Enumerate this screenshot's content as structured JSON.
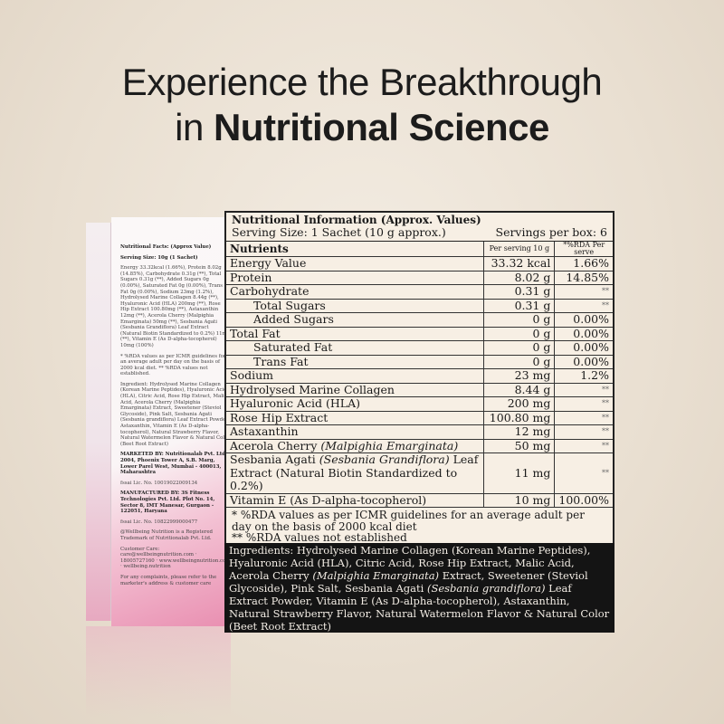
{
  "headline": {
    "line1": "Experience the Breakthrough",
    "line2_prefix": "in ",
    "line2_bold": "Nutritional Science"
  },
  "box": {
    "lines": [
      "Nutritional Facts: (Approx Value)",
      "Serving Size: 10g (1 Sachet)",
      "Energy 33.32kcal (1.66%), Protein 8.02g (14.85%), Carbohydrate 0.31g (**), Total Sugars 0.31g (**), Added Sugars 0g (0.00%), Saturated Fat 0g (0.00%), Trans Fat 0g (0.00%), Sodium 23mg (1.2%), Hydrolysed Marine Collagen 8.44g (**), Hyaluronic Acid (HLA) 200mg (**), Rose Hip Extract 100.80mg (**), Astaxanthin 12mg (**), Acerola Cherry (Malpighia Emarginata) 50mg (**), Sesbania Agati (Sesbania Grandiflora) Leaf Extract (Natural Biotin Standardized to 0.2%) 11mg (**), Vitamin E (As D-alpha-tocopherol) 10mg (100%)",
      "* %RDA values as per ICMR guidelines for an average adult per day on the basis of 2000 kcal diet. ** %RDA values not established.",
      "Ingredient: Hydrolysed Marine Collagen (Korean Marine Peptides), Hyaluronic Acid (HLA), Citric Acid, Rose Hip Extract, Malic Acid, Acerola Cherry (Malpighia Emarginata) Extract, Sweetener (Steviol Glycoside), Pink Salt, Sesbania Agati (Sesbania grandiflora) Leaf Extract Powder, Astaxanthin, Vitamin E (As D-alpha-tocopherol), Natural Strawberry Flavor, Natural Watermelon Flavor & Natural Color (Beet Root Extract)",
      "MARKETED BY: Nutritionalab Pvt. Ltd., 2004, Phoenix Tower A, S.B. Marg, Lower Parel West, Mumbai - 400013, Maharashtra",
      "fssai Lic. No. 10019022009134",
      "MANUFACTURED BY: 3S Fitness Technologies Pvt. Ltd. Plot No. 14, Sector 8, IMT Manesar, Gurgaon - 122051, Haryana",
      "fssai Lic. No. 10822999000477",
      "@Wellbeing Nutrition is a Registered Trademark of Nutritionalab Pvt. Ltd.",
      "Customer Care: care@wellbeingnutrition.com · 18005727160 · www.wellbeingnutrition.com · wellbeing.nutrition",
      "For any complaints, please refer to the marketer's address & customer care"
    ]
  },
  "panel": {
    "title": "Nutritional Information (Approx. Values)",
    "serving_size": "Serving Size: 1 Sachet (10 g approx.)",
    "servings_per_box": "Servings per box: 6",
    "headers": {
      "nutrients": "Nutrients",
      "per_serving": "Per serving 10 g",
      "rda": "*%RDA Per serve"
    },
    "rows": [
      {
        "name": "Energy Value",
        "value": "33.32 kcal",
        "rda": "1.66%"
      },
      {
        "name": "Protein",
        "value": "8.02 g",
        "rda": "14.85%"
      },
      {
        "name": "Carbohydrate",
        "value": "0.31 g",
        "rda": "**"
      },
      {
        "name": "Total Sugars",
        "value": "0.31 g",
        "rda": "**",
        "indent": true
      },
      {
        "name": "Added Sugars",
        "value": "0 g",
        "rda": "0.00%",
        "indent": true
      },
      {
        "name": "Total Fat",
        "value": "0 g",
        "rda": "0.00%"
      },
      {
        "name": "Saturated Fat",
        "value": "0 g",
        "rda": "0.00%",
        "indent": true
      },
      {
        "name": "Trans Fat",
        "value": "0 g",
        "rda": "0.00%",
        "indent": true
      },
      {
        "name": "Sodium",
        "value": "23 mg",
        "rda": "1.2%"
      },
      {
        "name": "Hydrolysed Marine Collagen",
        "value": "8.44 g",
        "rda": "**"
      },
      {
        "name": "Hyaluronic Acid (HLA)",
        "value": "200 mg",
        "rda": "**"
      },
      {
        "name": "Rose Hip Extract",
        "value": "100.80 mg",
        "rda": "**"
      },
      {
        "name": "Astaxanthin",
        "value": "12 mg",
        "rda": "**"
      },
      {
        "name": "Acerola Cherry",
        "italic": "(Malpighia Emarginata)",
        "value": "50 mg",
        "rda": "**"
      },
      {
        "name": "Sesbania Agati",
        "italic": "(Sesbania Grandiflora)",
        "after": " Leaf Extract (Natural Biotin Standardized to 0.2%)",
        "value": "11 mg",
        "rda": "**"
      },
      {
        "name": "Vitamin E (As D-alpha-tocopherol)",
        "value": "10 mg",
        "rda": "100.00%"
      }
    ],
    "footnote1": "* %RDA values as per ICMR guidelines for an average adult per day on the basis of 2000 kcal diet",
    "footnote2": "** %RDA values not established"
  },
  "ingredients": {
    "p1": "Ingredients: Hydrolysed Marine Collagen (Korean Marine Peptides), Hyaluronic Acid (HLA), Citric Acid, Rose Hip Extract, Malic Acid, Acerola Cherry ",
    "i1": "(Malpighia Emarginata)",
    "p2": " Extract, Sweetener (Steviol Glycoside), Pink Salt, Sesbania Agati ",
    "i2": "(Sesbania grandiflora)",
    "p3": " Leaf Extract Powder, Vitamin E (As D-alpha-tocopherol), Astaxanthin, Natural Strawberry Flavor, Natural Watermelon Flavor & Natural Color (Beet Root Extract)"
  }
}
